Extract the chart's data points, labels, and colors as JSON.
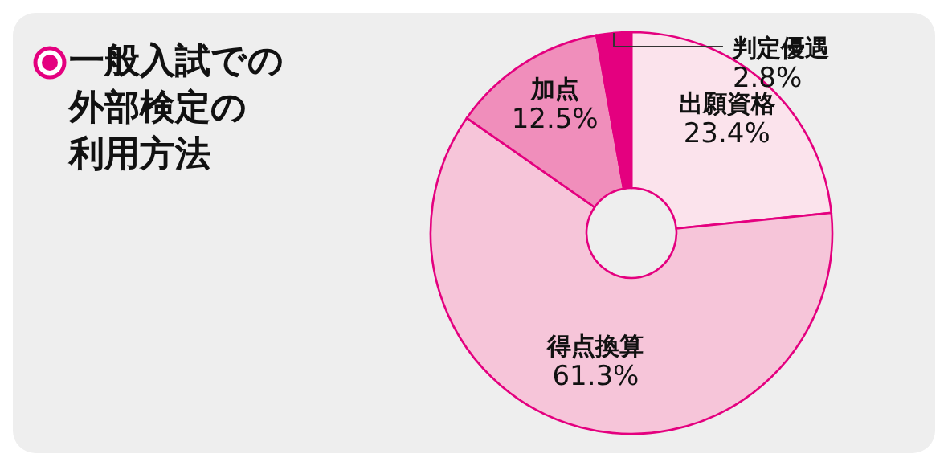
{
  "chart_data": {
    "type": "donut",
    "title": "一般入試での外部検定の利用方法",
    "categories": [
      "出願資格",
      "得点換算",
      "加点",
      "判定優遇"
    ],
    "values": [
      23.4,
      61.3,
      12.5,
      2.8
    ],
    "value_labels": [
      "23.4%",
      "61.3%",
      "12.5%",
      "2.8%"
    ],
    "colors": [
      "#fbe3ec",
      "#f6c5d9",
      "#f08ebb",
      "#e4007f"
    ]
  }
}
